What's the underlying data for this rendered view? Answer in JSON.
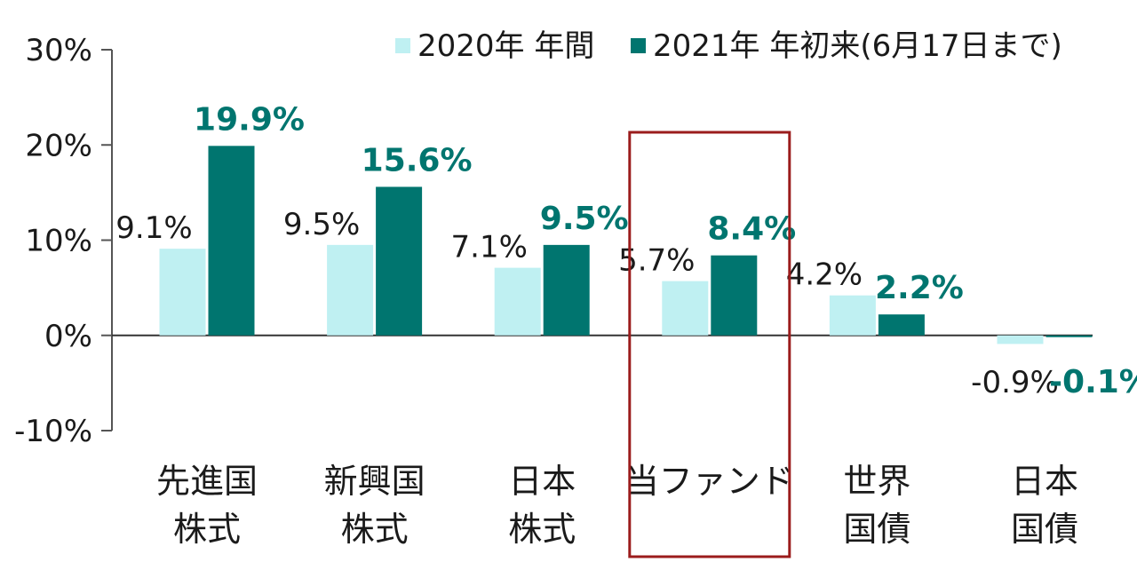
{
  "chart_data": {
    "type": "bar",
    "categories": [
      [
        "先進国",
        "株式"
      ],
      [
        "新興国",
        "株式"
      ],
      [
        "日本",
        "株式"
      ],
      [
        "当ファンド"
      ],
      [
        "世界",
        "国債"
      ],
      [
        "日本",
        "国債"
      ]
    ],
    "series": [
      {
        "name": "2020年 年間",
        "color": "#bff0f2",
        "values": [
          9.1,
          9.5,
          7.1,
          5.7,
          4.2,
          -0.9
        ],
        "labels": [
          "9.1%",
          "9.5%",
          "7.1%",
          "5.7%",
          "4.2%",
          "-0.9%"
        ]
      },
      {
        "name": "2021年 年初来(6月17日まで)",
        "color": "#00756f",
        "values": [
          19.9,
          15.6,
          9.5,
          8.4,
          2.2,
          -0.1
        ],
        "labels": [
          "19.9%",
          "15.6%",
          "9.5%",
          "8.4%",
          "2.2%",
          "-0.1%"
        ]
      }
    ],
    "ylim": [
      -10,
      30
    ],
    "yticks": [
      30,
      20,
      10,
      0,
      -10
    ],
    "ytick_labels": [
      "30%",
      "20%",
      "10%",
      "0%",
      "-10%"
    ],
    "highlight_category": 3,
    "highlight_color": "#9b1c1c",
    "legend_position": "top-right",
    "grid": false
  }
}
